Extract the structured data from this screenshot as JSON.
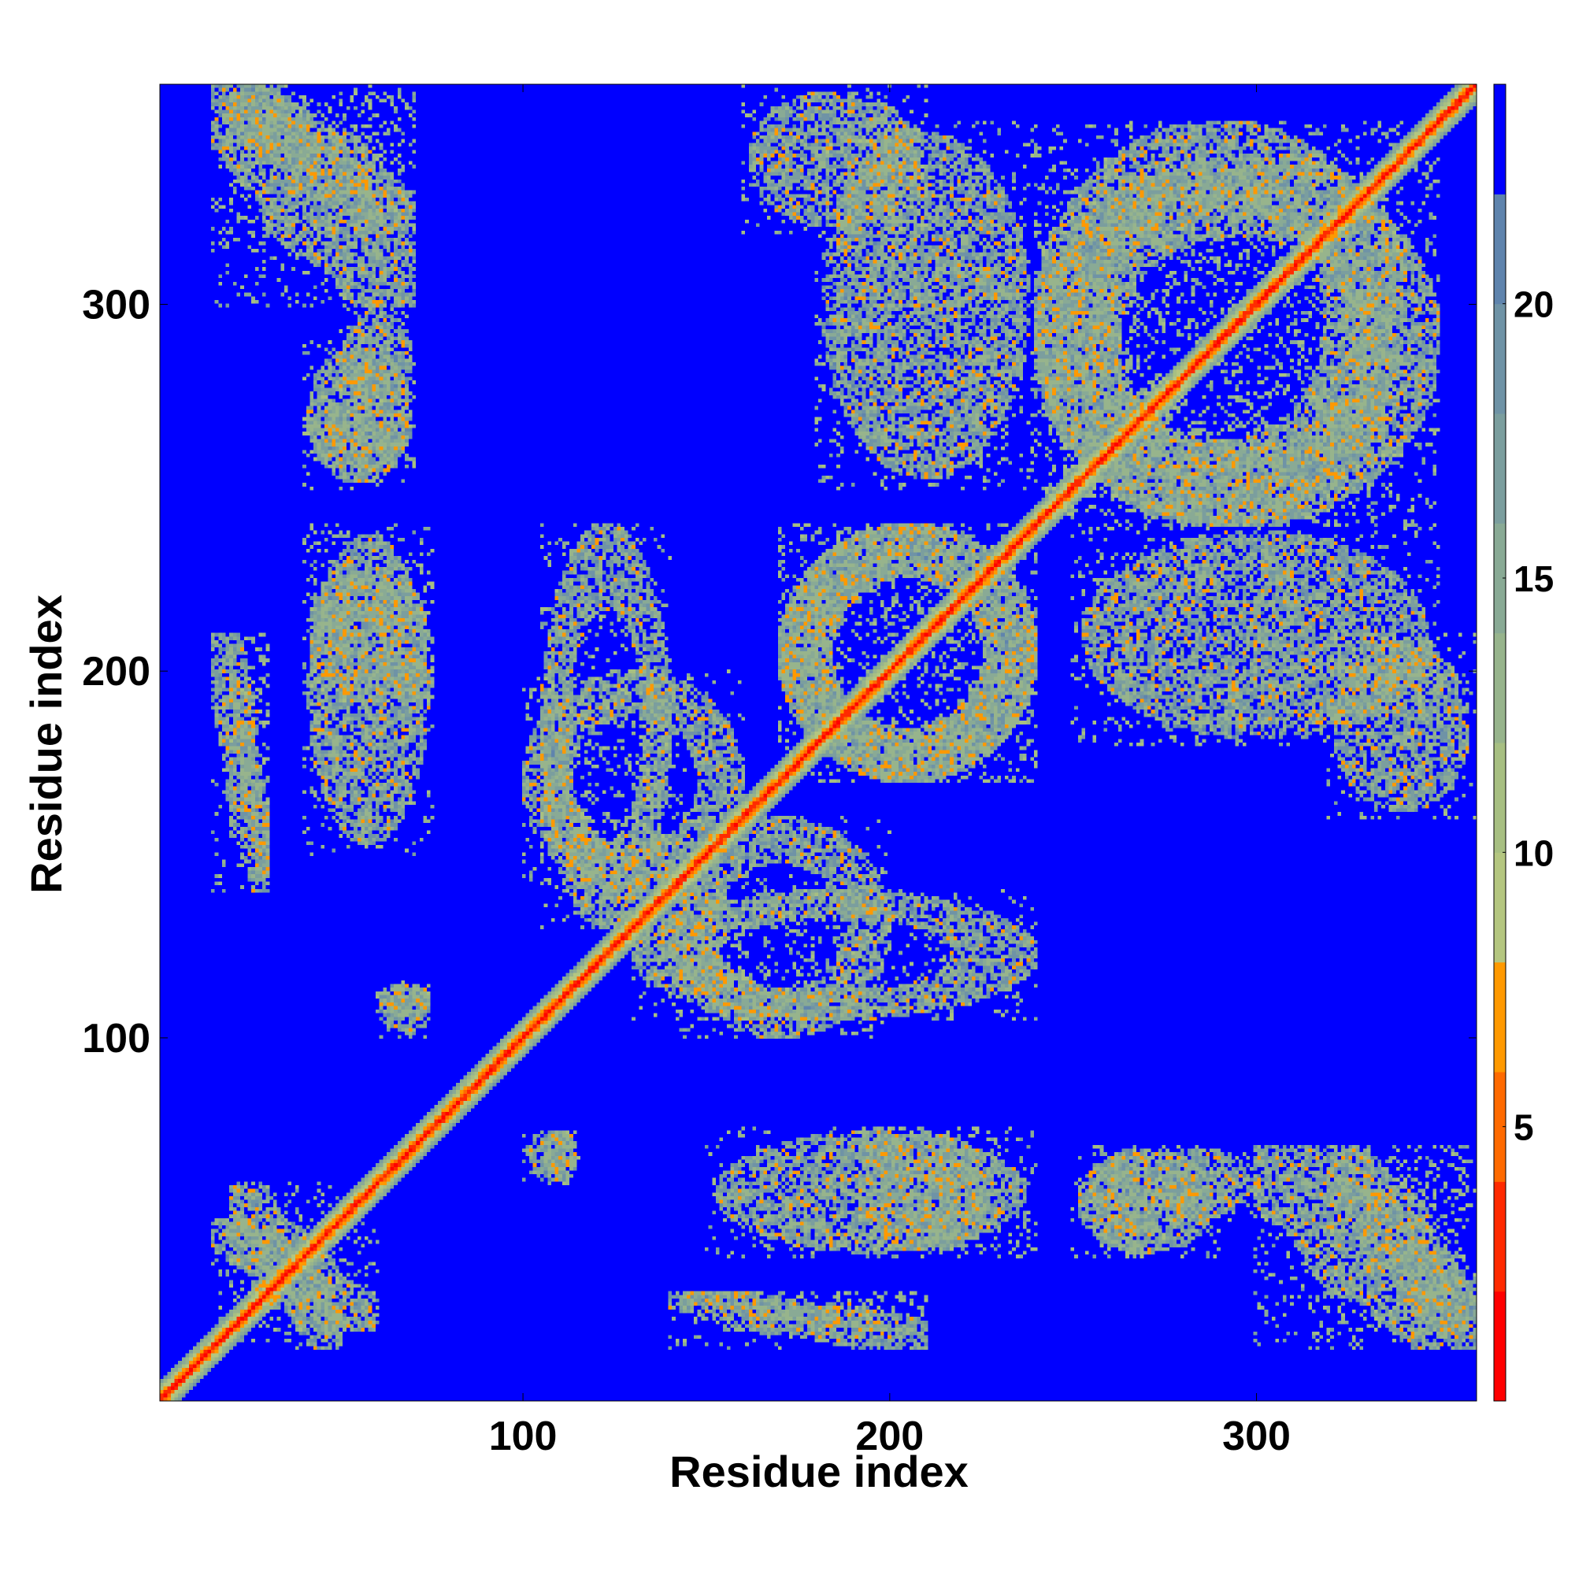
{
  "chart_data": {
    "type": "heatmap",
    "title": "",
    "xlabel": "Residue index",
    "ylabel": "Residue index",
    "xlim": [
      1,
      360
    ],
    "ylim": [
      1,
      360
    ],
    "x_ticks": [
      100,
      200,
      300
    ],
    "x_tick_labels": [
      "100",
      "200",
      "300"
    ],
    "y_ticks": [
      100,
      200,
      300
    ],
    "y_tick_labels": [
      "100",
      "200",
      "300"
    ],
    "grid": false,
    "colorbar": {
      "position": "right",
      "range": [
        0,
        24
      ],
      "ticks": [
        5,
        10,
        15,
        20
      ],
      "tick_labels": [
        "5",
        "10",
        "15",
        "20"
      ],
      "levels": [
        {
          "from": 0,
          "to": 2,
          "color": "#ff0000"
        },
        {
          "from": 2,
          "to": 4,
          "color": "#ff2a00"
        },
        {
          "from": 4,
          "to": 6,
          "color": "#ff6a00"
        },
        {
          "from": 6,
          "to": 8,
          "color": "#ff9900"
        },
        {
          "from": 8,
          "to": 10,
          "color": "#b4c680"
        },
        {
          "from": 10,
          "to": 12,
          "color": "#a7bf82"
        },
        {
          "from": 12,
          "to": 14,
          "color": "#97b48c"
        },
        {
          "from": 14,
          "to": 16,
          "color": "#89aa95"
        },
        {
          "from": 16,
          "to": 18,
          "color": "#7b9e9e"
        },
        {
          "from": 18,
          "to": 20,
          "color": "#6f93a6"
        },
        {
          "from": 20,
          "to": 22,
          "color": "#5f84ad"
        },
        {
          "from": 22,
          "to": 24,
          "color": "#0000ff"
        }
      ]
    },
    "background_value": 24,
    "contact_regions": [
      {
        "x": [
          1,
          360
        ],
        "y": [
          1,
          360
        ],
        "pattern": "diagonal"
      },
      {
        "x": [
          20,
          70
        ],
        "y": [
          320,
          358
        ],
        "pattern": "band"
      },
      {
        "x": [
          50,
          70
        ],
        "y": [
          270,
          300
        ],
        "pattern": "patch"
      },
      {
        "x": [
          40,
          70
        ],
        "y": [
          255,
          275
        ],
        "pattern": "patch"
      },
      {
        "x": [
          40,
          75
        ],
        "y": [
          190,
          230
        ],
        "pattern": "patch"
      },
      {
        "x": [
          20,
          30
        ],
        "y": [
          145,
          210
        ],
        "pattern": "band"
      },
      {
        "x": [
          60,
          75
        ],
        "y": [
          100,
          115
        ],
        "pattern": "patch"
      },
      {
        "x": [
          20,
          50
        ],
        "y": [
          15,
          60
        ],
        "pattern": "band"
      },
      {
        "x": [
          105,
          140
        ],
        "y": [
          130,
          240
        ],
        "pattern": "ring"
      },
      {
        "x": [
          140,
          200
        ],
        "y": [
          100,
          160
        ],
        "pattern": "ring"
      },
      {
        "x": [
          170,
          240
        ],
        "y": [
          170,
          240
        ],
        "pattern": "ring"
      },
      {
        "x": [
          240,
          340
        ],
        "y": [
          240,
          350
        ],
        "pattern": "ring"
      },
      {
        "x": [
          160,
          210
        ],
        "y": [
          320,
          360
        ],
        "pattern": "patch"
      },
      {
        "x": [
          250,
          350
        ],
        "y": [
          180,
          240
        ],
        "pattern": "patch"
      },
      {
        "x": [
          300,
          360
        ],
        "y": [
          15,
          70
        ],
        "pattern": "band"
      },
      {
        "x": [
          150,
          240
        ],
        "y": [
          40,
          75
        ],
        "pattern": "patch"
      },
      {
        "x": [
          250,
          290
        ],
        "y": [
          40,
          70
        ],
        "pattern": "patch"
      },
      {
        "x": [
          140,
          210
        ],
        "y": [
          15,
          30
        ],
        "pattern": "band"
      },
      {
        "x": [
          105,
          115
        ],
        "y": [
          60,
          75
        ],
        "pattern": "patch"
      }
    ]
  }
}
